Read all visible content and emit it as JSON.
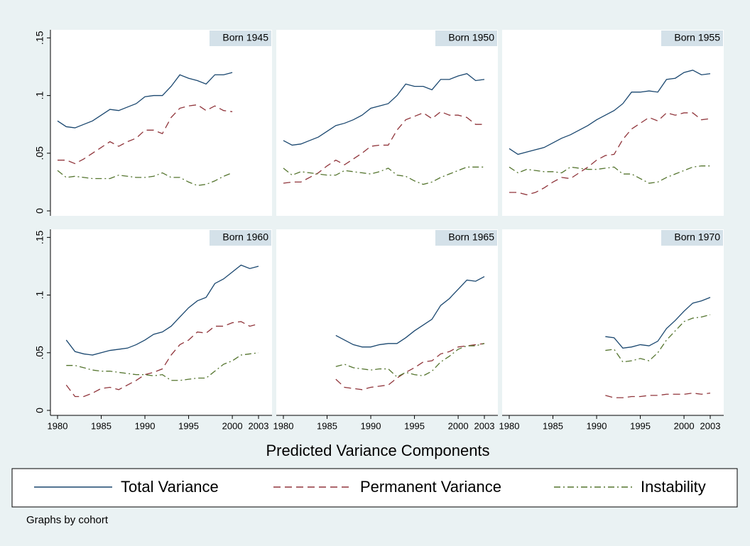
{
  "chart_data": {
    "type": "line",
    "xlabel": "Predicted Variance Components",
    "note": "Graphs by cohort",
    "x": [
      1980,
      1981,
      1982,
      1983,
      1984,
      1985,
      1986,
      1987,
      1988,
      1989,
      1990,
      1991,
      1992,
      1993,
      1994,
      1995,
      1996,
      1997,
      1998,
      1999,
      2000,
      2001,
      2002,
      2003
    ],
    "xlim": [
      1980,
      2003
    ],
    "xticks": [
      1980,
      1985,
      1990,
      1995,
      2000,
      2003
    ],
    "ylim": [
      -0.0043,
      0.157
    ],
    "yticks": [
      0,
      {
        "value": 0.05,
        "label": ".05"
      },
      {
        "value": 0.1,
        "label": ".1"
      },
      {
        "value": 0.15,
        "label": ".15"
      }
    ],
    "grid": false,
    "series": [
      {
        "name": "Total Variance",
        "color": "#1a476f",
        "style": "solid"
      },
      {
        "name": "Permanent Variance",
        "color": "#90353b",
        "style": "dash"
      },
      {
        "name": "Instability",
        "color": "#55752f",
        "style": "dashdot"
      }
    ],
    "panels": [
      {
        "title": "Born 1945",
        "series": [
          {
            "values": [
              0.078,
              0.073,
              0.072,
              0.075,
              0.078,
              0.083,
              0.088,
              0.087,
              0.09,
              0.093,
              0.099,
              0.1,
              0.1,
              0.108,
              0.118,
              0.115,
              0.113,
              0.11,
              0.118,
              0.118,
              0.12,
              null,
              null,
              null
            ]
          },
          {
            "values": [
              0.044,
              0.044,
              0.041,
              0.045,
              0.05,
              0.055,
              0.06,
              0.056,
              0.06,
              0.063,
              0.07,
              0.07,
              0.067,
              0.081,
              0.089,
              0.091,
              0.092,
              0.087,
              0.091,
              0.087,
              0.086,
              null,
              null,
              null
            ]
          },
          {
            "values": [
              0.035,
              0.029,
              0.03,
              0.029,
              0.028,
              0.028,
              0.028,
              0.031,
              0.03,
              0.029,
              0.029,
              0.03,
              0.033,
              0.029,
              0.029,
              0.025,
              0.022,
              0.023,
              0.026,
              0.03,
              0.033,
              null,
              null,
              null
            ]
          }
        ]
      },
      {
        "title": "Born 1950",
        "series": [
          {
            "values": [
              0.061,
              0.057,
              0.058,
              0.061,
              0.064,
              0.069,
              0.074,
              0.076,
              0.079,
              0.083,
              0.089,
              0.091,
              0.093,
              0.1,
              0.11,
              0.108,
              0.108,
              0.105,
              0.114,
              0.114,
              0.117,
              0.119,
              0.113,
              0.114
            ]
          },
          {
            "values": [
              0.024,
              0.025,
              0.025,
              0.029,
              0.033,
              0.039,
              0.044,
              0.04,
              0.045,
              0.05,
              0.056,
              0.057,
              0.057,
              0.07,
              0.079,
              0.082,
              0.085,
              0.08,
              0.086,
              0.083,
              0.083,
              0.081,
              0.075,
              0.075
            ]
          },
          {
            "values": [
              0.037,
              0.031,
              0.034,
              0.033,
              0.032,
              0.031,
              0.031,
              0.035,
              0.034,
              0.033,
              0.032,
              0.034,
              0.037,
              0.031,
              0.03,
              0.026,
              0.023,
              0.025,
              0.029,
              0.032,
              0.035,
              0.038,
              0.038,
              0.038
            ]
          }
        ]
      },
      {
        "title": "Born 1955",
        "series": [
          {
            "values": [
              0.054,
              0.049,
              0.051,
              0.053,
              0.055,
              0.059,
              0.063,
              0.066,
              0.07,
              0.074,
              0.079,
              0.083,
              0.087,
              0.093,
              0.103,
              0.103,
              0.104,
              0.103,
              0.114,
              0.115,
              0.12,
              0.122,
              0.118,
              0.119
            ]
          },
          {
            "values": [
              0.016,
              0.016,
              0.014,
              0.016,
              0.02,
              0.025,
              0.029,
              0.028,
              0.033,
              0.038,
              0.044,
              0.048,
              0.049,
              0.062,
              0.071,
              0.076,
              0.081,
              0.078,
              0.085,
              0.083,
              0.085,
              0.085,
              0.079,
              0.08
            ]
          },
          {
            "values": [
              0.038,
              0.033,
              0.036,
              0.035,
              0.034,
              0.034,
              0.033,
              0.038,
              0.037,
              0.036,
              0.036,
              0.037,
              0.038,
              0.032,
              0.032,
              0.028,
              0.024,
              0.025,
              0.029,
              0.032,
              0.035,
              0.038,
              0.039,
              0.039
            ]
          }
        ]
      },
      {
        "title": "Born 1960",
        "series": [
          {
            "values": [
              null,
              0.061,
              0.051,
              0.049,
              0.048,
              0.05,
              0.052,
              0.053,
              0.054,
              0.057,
              0.061,
              0.066,
              0.068,
              0.073,
              0.081,
              0.089,
              0.095,
              0.098,
              0.11,
              0.114,
              0.12,
              0.126,
              0.123,
              0.125
            ]
          },
          {
            "values": [
              null,
              0.022,
              0.012,
              0.012,
              0.015,
              0.019,
              0.02,
              0.018,
              0.022,
              0.026,
              0.031,
              0.033,
              0.036,
              0.048,
              0.057,
              0.061,
              0.068,
              0.067,
              0.073,
              0.073,
              0.076,
              0.077,
              0.073,
              0.075
            ]
          },
          {
            "values": [
              null,
              0.039,
              0.039,
              0.037,
              0.035,
              0.034,
              0.034,
              0.033,
              0.032,
              0.031,
              0.031,
              0.03,
              0.031,
              0.026,
              0.026,
              0.027,
              0.028,
              0.028,
              0.034,
              0.04,
              0.043,
              0.048,
              0.049,
              0.05
            ]
          }
        ]
      },
      {
        "title": "Born 1965",
        "series": [
          {
            "values": [
              null,
              null,
              null,
              null,
              null,
              null,
              0.065,
              0.061,
              0.057,
              0.055,
              0.055,
              0.057,
              0.058,
              0.058,
              0.063,
              0.069,
              0.074,
              0.079,
              0.091,
              0.097,
              0.105,
              0.113,
              0.112,
              0.116
            ]
          },
          {
            "values": [
              null,
              null,
              null,
              null,
              null,
              null,
              0.027,
              0.02,
              0.019,
              0.018,
              0.02,
              0.021,
              0.022,
              0.028,
              0.033,
              0.037,
              0.042,
              0.043,
              0.049,
              0.051,
              0.055,
              0.056,
              0.057,
              0.058
            ]
          },
          {
            "values": [
              null,
              null,
              null,
              null,
              null,
              null,
              0.038,
              0.04,
              0.037,
              0.036,
              0.035,
              0.036,
              0.036,
              0.029,
              0.033,
              0.031,
              0.03,
              0.034,
              0.042,
              0.047,
              0.053,
              0.056,
              0.056,
              0.058
            ]
          }
        ]
      },
      {
        "title": "Born 1970",
        "series": [
          {
            "values": [
              null,
              null,
              null,
              null,
              null,
              null,
              null,
              null,
              null,
              null,
              null,
              0.064,
              0.063,
              0.054,
              0.055,
              0.057,
              0.056,
              0.06,
              0.071,
              0.078,
              0.086,
              0.093,
              0.095,
              0.098
            ]
          },
          {
            "values": [
              null,
              null,
              null,
              null,
              null,
              null,
              null,
              null,
              null,
              null,
              null,
              0.013,
              0.011,
              0.011,
              0.012,
              0.012,
              0.013,
              0.013,
              0.014,
              0.014,
              0.014,
              0.015,
              0.014,
              0.015
            ]
          },
          {
            "values": [
              null,
              null,
              null,
              null,
              null,
              null,
              null,
              null,
              null,
              null,
              null,
              0.052,
              0.053,
              0.042,
              0.043,
              0.045,
              0.043,
              0.05,
              0.061,
              0.069,
              0.077,
              0.08,
              0.081,
              0.083
            ]
          }
        ]
      }
    ]
  }
}
